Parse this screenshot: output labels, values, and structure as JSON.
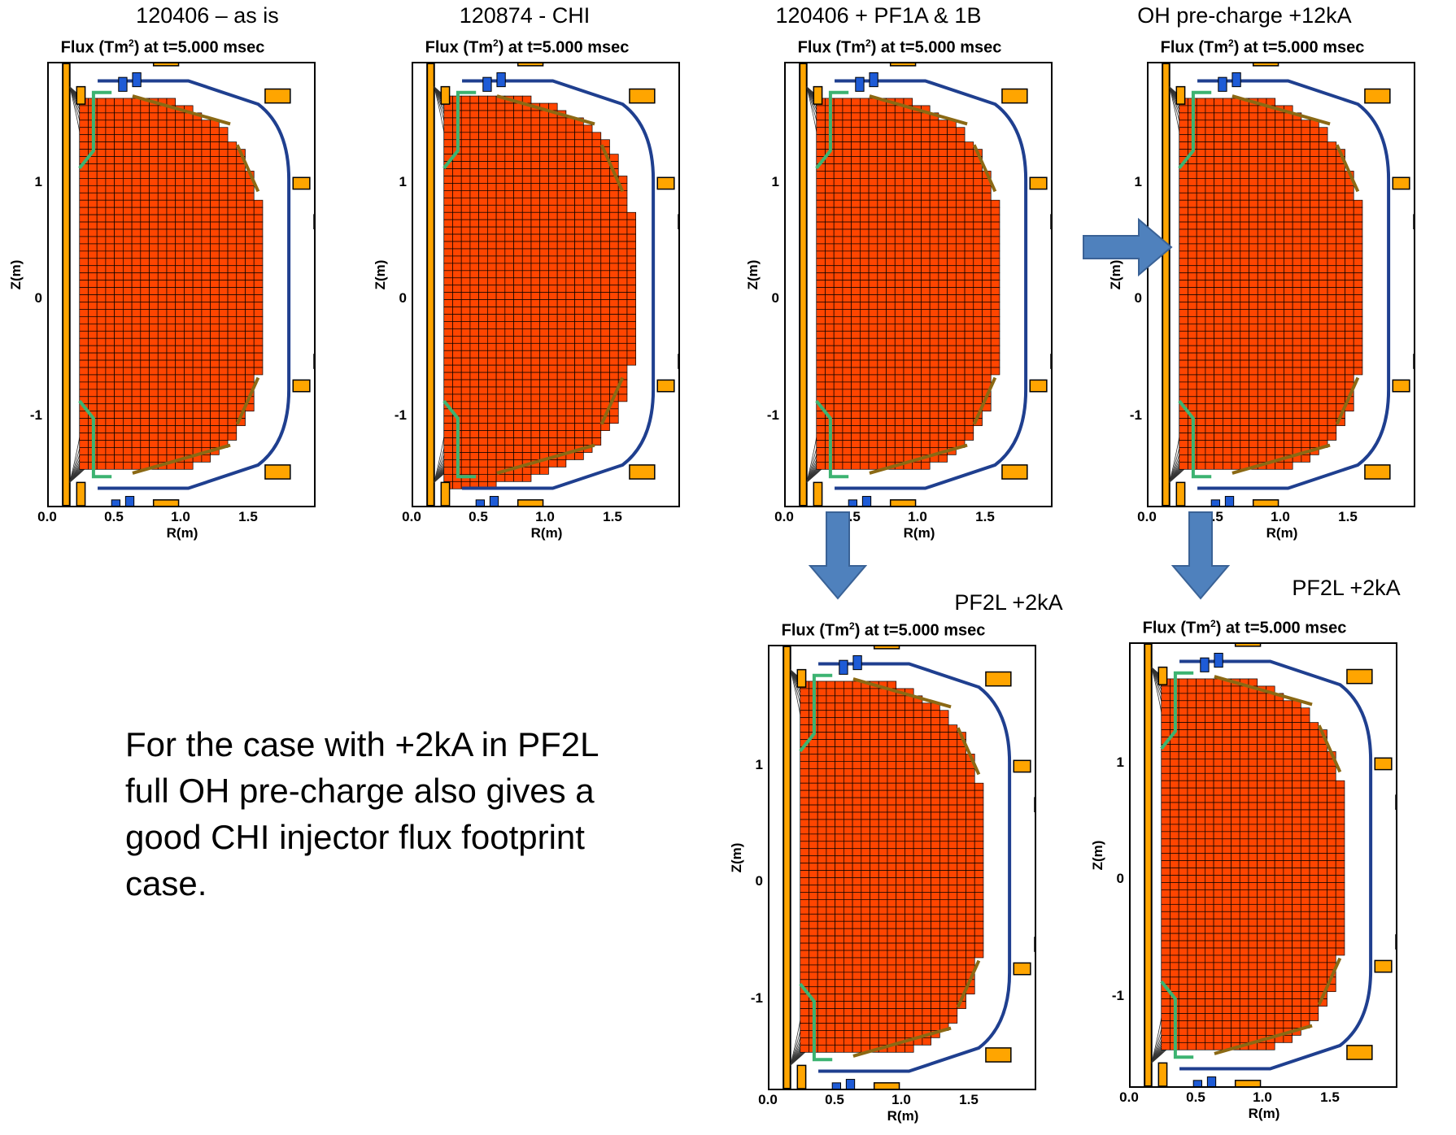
{
  "headings": {
    "h1": "120406 – as is",
    "h2": "120874 - CHI",
    "h3": "120406 + PF1A & 1B",
    "h4": "OH pre-charge +12kA",
    "h5": "PF2L +2kA",
    "h6": "PF2L +2kA"
  },
  "panel": {
    "title_prefix": "Flux (Tm",
    "title_sup": "2",
    "title_suffix": ") at t=5.000 msec",
    "ylabel": "Z(m)",
    "xlabel": "R(m)",
    "yticks": [
      "1",
      "0",
      "-1"
    ],
    "xticks": [
      "0.0",
      "0.5",
      "1.0",
      "1.5"
    ]
  },
  "note": "For the case with +2kA in PF2L full OH pre-charge also gives a good CHI injector flux footprint case.",
  "colors": {
    "plasma_fill": "#ff4500",
    "grid_line": "#000000",
    "vessel": "#1f3f8f",
    "coil": "#ffa500",
    "plate": "#8b6914",
    "arrow": "#4f81bd",
    "green_plate": "#3cb371"
  }
}
